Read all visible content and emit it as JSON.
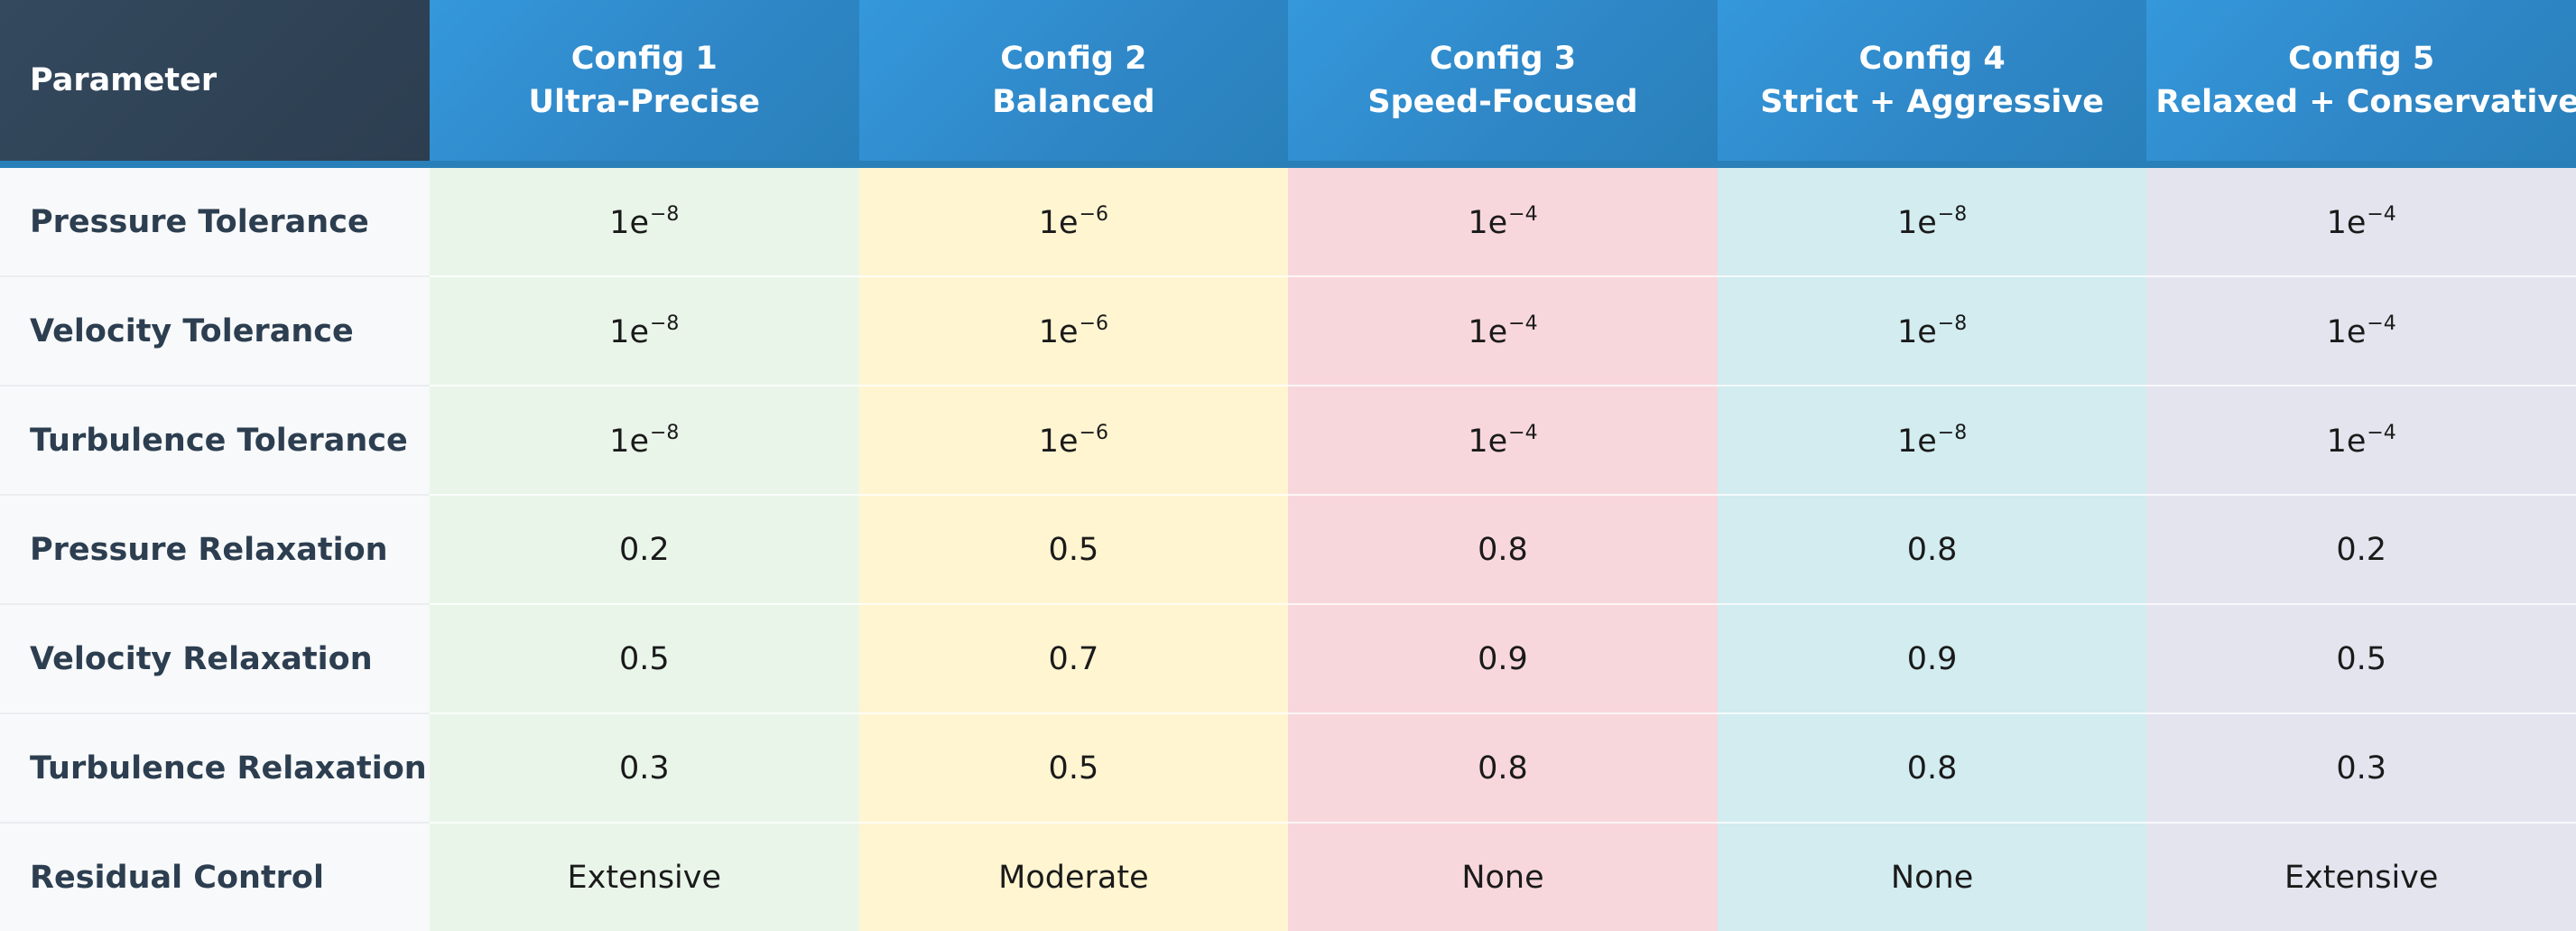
{
  "table": {
    "param_header": "Parameter",
    "configs": [
      {
        "name": "Config 1",
        "subtitle": "Ultra-Precise",
        "bg": "#eaf5ea"
      },
      {
        "name": "Config 2",
        "subtitle": "Balanced",
        "bg": "#fff5d1"
      },
      {
        "name": "Config 3",
        "subtitle": "Speed-Focused",
        "bg": "#f8d7dc"
      },
      {
        "name": "Config 4",
        "subtitle": "Strict + Aggressive",
        "bg": "#d2ecf0"
      },
      {
        "name": "Config 5",
        "subtitle": "Relaxed + Conservative",
        "bg": "#e3e4ee"
      }
    ],
    "rows": [
      {
        "label": "Pressure Tolerance",
        "values": [
          {
            "base": "1e",
            "exp": "−8"
          },
          {
            "base": "1e",
            "exp": "−6"
          },
          {
            "base": "1e",
            "exp": "−4"
          },
          {
            "base": "1e",
            "exp": "−8"
          },
          {
            "base": "1e",
            "exp": "−4"
          }
        ]
      },
      {
        "label": "Velocity Tolerance",
        "values": [
          {
            "base": "1e",
            "exp": "−8"
          },
          {
            "base": "1e",
            "exp": "−6"
          },
          {
            "base": "1e",
            "exp": "−4"
          },
          {
            "base": "1e",
            "exp": "−8"
          },
          {
            "base": "1e",
            "exp": "−4"
          }
        ]
      },
      {
        "label": "Turbulence Tolerance",
        "values": [
          {
            "base": "1e",
            "exp": "−8"
          },
          {
            "base": "1e",
            "exp": "−6"
          },
          {
            "base": "1e",
            "exp": "−4"
          },
          {
            "base": "1e",
            "exp": "−8"
          },
          {
            "base": "1e",
            "exp": "−4"
          }
        ]
      },
      {
        "label": "Pressure Relaxation",
        "values": [
          {
            "base": "0.2",
            "exp": ""
          },
          {
            "base": "0.5",
            "exp": ""
          },
          {
            "base": "0.8",
            "exp": ""
          },
          {
            "base": "0.8",
            "exp": ""
          },
          {
            "base": "0.2",
            "exp": ""
          }
        ]
      },
      {
        "label": "Velocity Relaxation",
        "values": [
          {
            "base": "0.5",
            "exp": ""
          },
          {
            "base": "0.7",
            "exp": ""
          },
          {
            "base": "0.9",
            "exp": ""
          },
          {
            "base": "0.9",
            "exp": ""
          },
          {
            "base": "0.5",
            "exp": ""
          }
        ]
      },
      {
        "label": "Turbulence Relaxation",
        "values": [
          {
            "base": "0.3",
            "exp": ""
          },
          {
            "base": "0.5",
            "exp": ""
          },
          {
            "base": "0.8",
            "exp": ""
          },
          {
            "base": "0.8",
            "exp": ""
          },
          {
            "base": "0.3",
            "exp": ""
          }
        ]
      },
      {
        "label": "Residual Control",
        "values": [
          {
            "base": "Extensive",
            "exp": ""
          },
          {
            "base": "Moderate",
            "exp": ""
          },
          {
            "base": "None",
            "exp": ""
          },
          {
            "base": "None",
            "exp": ""
          },
          {
            "base": "Extensive",
            "exp": ""
          }
        ]
      }
    ]
  },
  "colors": {
    "header_param_bg": "#2c3e50",
    "header_config_bg": "#3498db",
    "header_border": "#2980b9",
    "param_column_bg": "#f8f9fa",
    "param_text": "#2c3e50"
  }
}
